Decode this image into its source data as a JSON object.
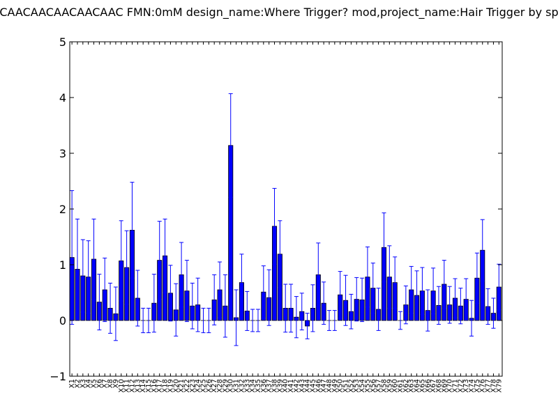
{
  "chart_data": {
    "type": "bar",
    "title": "CAACAACAACAACAAC  FMN:0mM  design_name:Where Trigger? mod,project_name:Hair Trigger by sp",
    "xlabel": "",
    "ylabel": "",
    "ylim": [
      -1,
      5
    ],
    "yticks": [
      "−1",
      "0",
      "1",
      "2",
      "3",
      "4",
      "5"
    ],
    "grid": false,
    "colors": {
      "bar": "#0000ff",
      "errorbar": "#0000ff",
      "axes": "#000000"
    },
    "categories": [
      "X1",
      "X2",
      "X3",
      "X4",
      "X5",
      "X6",
      "X7",
      "X8",
      "X9",
      "X10",
      "X11",
      "X12",
      "X13",
      "X14",
      "X15",
      "X16",
      "X17",
      "X18",
      "X19",
      "X20",
      "X21",
      "X22",
      "X23",
      "X24",
      "X25",
      "X26",
      "X27",
      "X28",
      "X29",
      "X30",
      "X31",
      "X32",
      "X33",
      "X34",
      "X35",
      "X36",
      "X37",
      "X38",
      "X39",
      "X40",
      "X41",
      "X42",
      "X43",
      "X44",
      "X45",
      "X46",
      "X47",
      "X48",
      "X49",
      "X50",
      "X51",
      "X52",
      "X53",
      "X54",
      "X55",
      "X56",
      "X57",
      "X58",
      "X59",
      "X60",
      "X61",
      "X62",
      "X63",
      "X64",
      "X65",
      "X66",
      "X67",
      "X68",
      "X69",
      "X70",
      "X71",
      "X72",
      "X73",
      "X74",
      "X75",
      "X76",
      "X77",
      "X78",
      "X79"
    ],
    "values": [
      1.13,
      0.92,
      0.8,
      0.78,
      1.1,
      0.33,
      0.55,
      0.22,
      0.12,
      1.07,
      0.95,
      1.62,
      0.4,
      0.0,
      0.0,
      0.31,
      1.08,
      1.16,
      0.49,
      0.19,
      0.82,
      0.53,
      0.26,
      0.28,
      0.0,
      0.0,
      0.37,
      0.55,
      0.26,
      3.14,
      0.05,
      0.68,
      0.17,
      0.0,
      0.0,
      0.51,
      0.41,
      1.69,
      1.19,
      0.22,
      0.22,
      0.06,
      0.16,
      -0.1,
      0.22,
      0.82,
      0.31,
      0.0,
      0.0,
      0.46,
      0.36,
      0.16,
      0.38,
      0.37,
      0.78,
      0.58,
      0.2,
      1.31,
      0.78,
      0.68,
      0.0,
      0.28,
      0.55,
      0.45,
      0.53,
      0.18,
      0.53,
      0.27,
      0.65,
      0.28,
      0.4,
      0.26,
      0.38,
      0.04,
      0.76,
      1.26,
      0.25,
      0.13,
      0.6
    ],
    "errors": [
      1.2,
      0.9,
      0.65,
      0.65,
      0.72,
      0.5,
      0.57,
      0.45,
      0.48,
      0.72,
      0.66,
      0.86,
      0.5,
      0.22,
      0.22,
      0.52,
      0.7,
      0.66,
      0.5,
      0.47,
      0.58,
      0.55,
      0.41,
      0.48,
      0.22,
      0.22,
      0.45,
      0.5,
      0.56,
      0.93,
      0.5,
      0.51,
      0.35,
      0.2,
      0.2,
      0.47,
      0.5,
      0.68,
      0.6,
      0.43,
      0.43,
      0.37,
      0.33,
      0.23,
      0.42,
      0.57,
      0.38,
      0.18,
      0.18,
      0.42,
      0.45,
      0.31,
      0.39,
      0.39,
      0.54,
      0.45,
      0.38,
      0.62,
      0.56,
      0.46,
      0.16,
      0.34,
      0.42,
      0.44,
      0.42,
      0.37,
      0.41,
      0.34,
      0.43,
      0.33,
      0.35,
      0.32,
      0.37,
      0.32,
      0.45,
      0.55,
      0.32,
      0.27,
      0.41
    ]
  }
}
